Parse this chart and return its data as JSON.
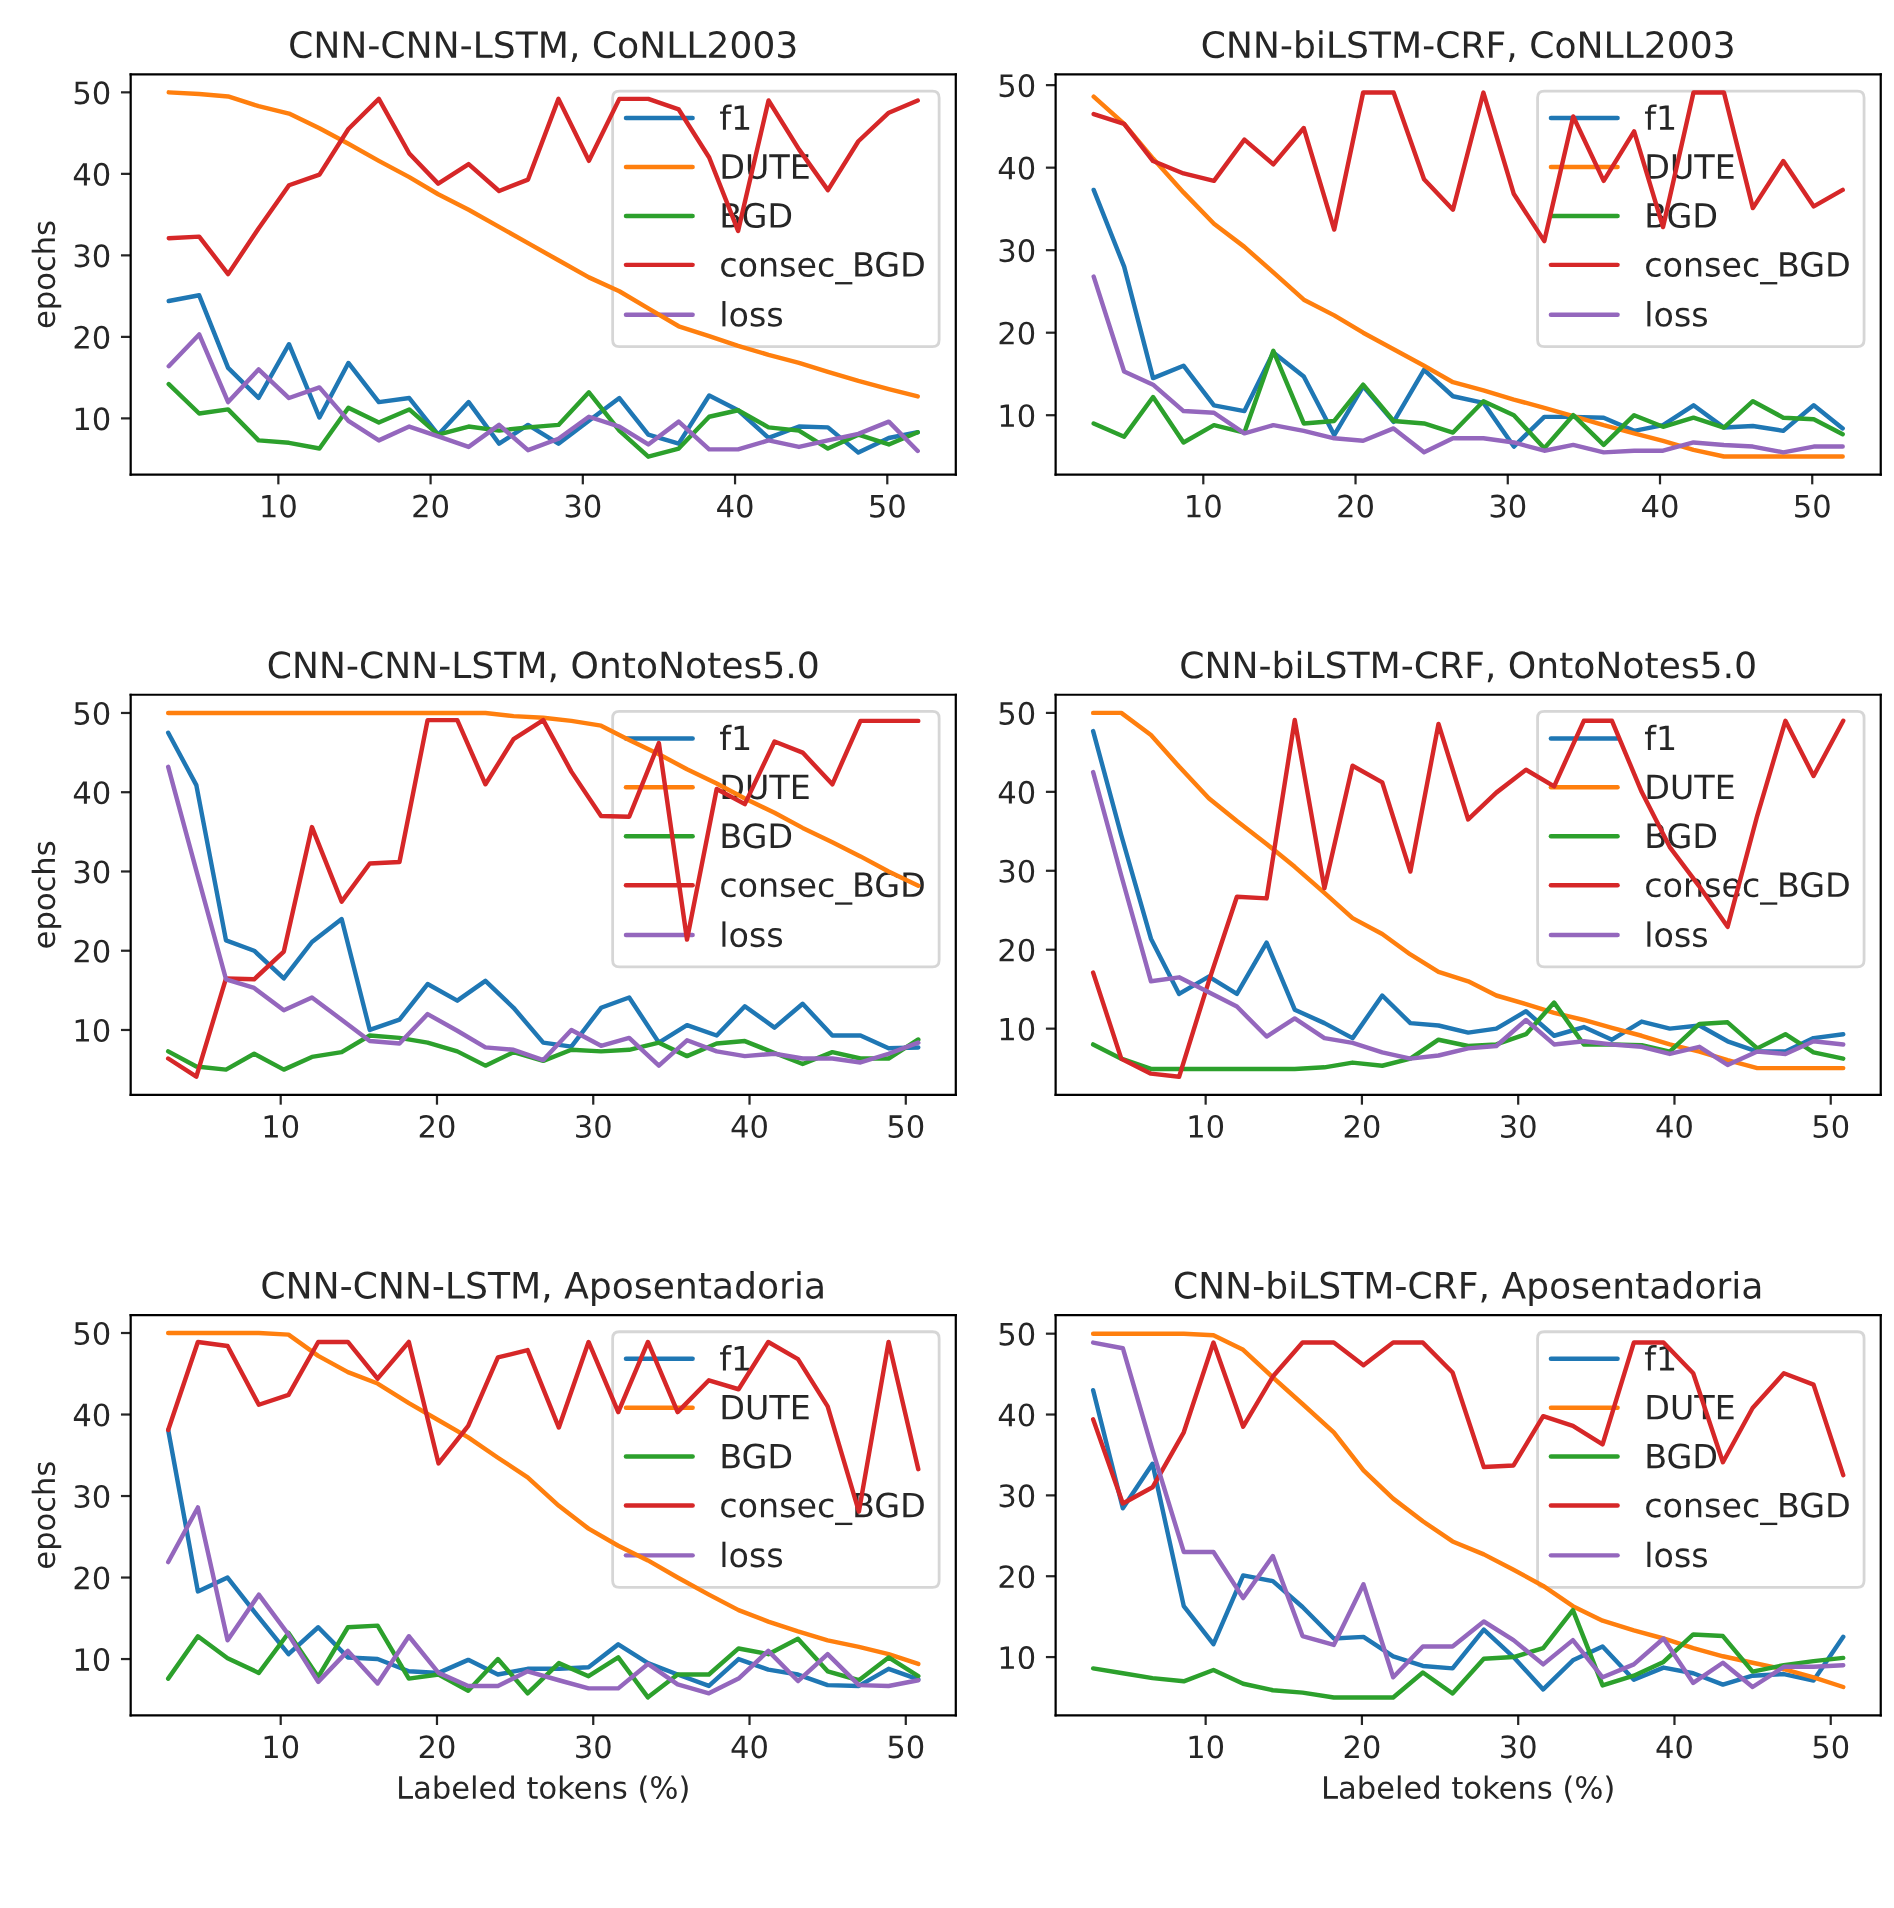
{
  "chart_data": [
    {
      "type": "line",
      "title": "CNN-CNN-LSTM, CoNLL2003",
      "ylabel": "epochs",
      "legend": "top right",
      "grid": false,
      "x": [
        2.8,
        4.8,
        6.7,
        8.7,
        10.7,
        12.7,
        14.6,
        16.6,
        18.6,
        20.5,
        22.5,
        24.5,
        26.4,
        28.4,
        30.4,
        32.4,
        34.3,
        36.3,
        38.3,
        40.2,
        42.2,
        44.2,
        46.1,
        48.1,
        50.1,
        52.0
      ],
      "xlim": [
        0.3,
        54.5
      ],
      "xticks": [
        10,
        20,
        30,
        40,
        50
      ],
      "ylim": [
        3.1,
        52.2
      ],
      "yticks": [
        10,
        20,
        30,
        40,
        50
      ],
      "series": [
        {
          "name": "f1",
          "color": "#1f77b4",
          "values": [
            24.4,
            25.1,
            16.2,
            12.5,
            19.1,
            10.1,
            16.8,
            12,
            12.5,
            8,
            12,
            6.9,
            9.2,
            6.9,
            9.7,
            12.5,
            8,
            6.9,
            12.8,
            11,
            7.6,
            9,
            8.9,
            5.8,
            7.6,
            8.3
          ]
        },
        {
          "name": "DUTE",
          "color": "#ff7f0e",
          "values": [
            50,
            49.8,
            49.5,
            48.3,
            47.4,
            45.6,
            43.7,
            41.6,
            39.6,
            37.5,
            35.6,
            33.5,
            31.5,
            29.4,
            27.3,
            25.6,
            23.5,
            21.3,
            20.1,
            18.9,
            17.8,
            16.8,
            15.7,
            14.6,
            13.6,
            12.7
          ]
        },
        {
          "name": "BGD",
          "color": "#2ca02c",
          "values": [
            14.2,
            10.6,
            11.1,
            7.3,
            7,
            6.3,
            11.3,
            9.5,
            11.1,
            8,
            9,
            8.5,
            8.9,
            9.2,
            13.2,
            8.5,
            5.3,
            6.3,
            10.2,
            11,
            8.9,
            8.5,
            6.3,
            8,
            6.8,
            8.3
          ]
        },
        {
          "name": "consec_BGD",
          "color": "#d62728",
          "values": [
            32.1,
            32.3,
            27.7,
            33.3,
            38.6,
            39.9,
            45.5,
            49.2,
            42.5,
            38.8,
            41.2,
            37.9,
            39.3,
            49.2,
            41.6,
            49.2,
            49.2,
            47.9,
            42,
            33,
            49,
            43,
            38,
            44,
            47.5,
            49
          ]
        },
        {
          "name": "loss",
          "color": "#9467bd",
          "values": [
            16.4,
            20.3,
            12,
            16,
            12.5,
            13.8,
            9.7,
            7.3,
            9,
            7.8,
            6.5,
            9.2,
            6.1,
            7.5,
            10.2,
            9,
            6.8,
            9.6,
            6.2,
            6.2,
            7.3,
            6.5,
            7.3,
            8.1,
            9.6,
            6
          ]
        }
      ]
    },
    {
      "type": "line",
      "title": "CNN-biLSTM-CRF, CoNLL2003",
      "legend": "top right",
      "grid": false,
      "x": [
        2.8,
        4.8,
        6.7,
        8.7,
        10.7,
        12.7,
        14.6,
        16.6,
        18.6,
        20.5,
        22.5,
        24.5,
        26.4,
        28.4,
        30.4,
        32.4,
        34.3,
        36.3,
        38.3,
        40.2,
        42.2,
        44.2,
        46.1,
        48.1,
        50.1,
        52.0
      ],
      "xlim": [
        0.3,
        54.5
      ],
      "xticks": [
        10,
        20,
        30,
        40,
        50
      ],
      "ylim": [
        2.8,
        51.3
      ],
      "yticks": [
        10,
        20,
        30,
        40,
        50
      ],
      "series": [
        {
          "name": "f1",
          "color": "#1f77b4",
          "values": [
            37.3,
            28,
            14.5,
            16,
            11.2,
            10.5,
            17.6,
            14.7,
            7.6,
            13.5,
            9.2,
            15.5,
            12.3,
            11.5,
            6.2,
            9.8,
            9.8,
            9.7,
            8.1,
            8.8,
            11.2,
            8.5,
            8.7,
            8.1,
            11.2,
            8.4
          ]
        },
        {
          "name": "DUTE",
          "color": "#ff7f0e",
          "values": [
            48.6,
            45.3,
            41.1,
            37,
            33.2,
            30.4,
            27.3,
            24,
            22.1,
            20,
            18,
            16,
            14,
            13,
            11.9,
            10.9,
            9.9,
            8.8,
            7.8,
            6.9,
            5.8,
            5,
            5,
            5,
            5,
            5
          ]
        },
        {
          "name": "BGD",
          "color": "#2ca02c",
          "values": [
            9,
            7.4,
            12.2,
            6.7,
            8.8,
            7.9,
            17.8,
            9,
            9.3,
            13.7,
            9.3,
            9,
            7.9,
            11.7,
            10,
            6,
            10,
            6.4,
            10,
            8.6,
            9.7,
            8.5,
            11.7,
            9.7,
            9.5,
            7.7
          ]
        },
        {
          "name": "consec_BGD",
          "color": "#d62728",
          "values": [
            46.5,
            45.3,
            40.8,
            39.3,
            38.4,
            43.4,
            40.4,
            44.8,
            32.5,
            49.1,
            49.1,
            38.6,
            34.9,
            49.1,
            36.8,
            31.1,
            46.2,
            38.4,
            44.4,
            32.8,
            49.1,
            49.1,
            35.1,
            40.8,
            35.3,
            37.3
          ]
        },
        {
          "name": "loss",
          "color": "#9467bd",
          "values": [
            26.8,
            15.3,
            13.7,
            10.5,
            10.3,
            7.8,
            8.8,
            8.1,
            7.2,
            6.9,
            8.4,
            5.5,
            7.2,
            7.2,
            6.7,
            5.7,
            6.4,
            5.5,
            5.7,
            5.7,
            6.7,
            6.4,
            6.2,
            5.5,
            6.2,
            6.2
          ]
        }
      ]
    },
    {
      "type": "line",
      "title": "CNN-CNN-LSTM, OntoNotes5.0",
      "ylabel": "epochs",
      "legend": "top right",
      "grid": false,
      "x": [
        2.8,
        4.6,
        6.5,
        8.3,
        10.2,
        12.0,
        13.9,
        15.7,
        17.6,
        19.4,
        21.3,
        23.1,
        24.9,
        26.8,
        28.6,
        30.5,
        32.3,
        34.2,
        36.0,
        37.9,
        39.7,
        41.6,
        43.4,
        45.3,
        47.1,
        48.9,
        50.8
      ],
      "xlim": [
        0.4,
        53.2
      ],
      "xticks": [
        10,
        20,
        30,
        40,
        50
      ],
      "ylim": [
        1.8,
        52.3
      ],
      "yticks": [
        10,
        20,
        30,
        40,
        50
      ],
      "series": [
        {
          "name": "f1",
          "color": "#1f77b4",
          "values": [
            47.5,
            40.9,
            21.3,
            20,
            16.5,
            21.1,
            24,
            10,
            11.3,
            15.8,
            13.7,
            16.2,
            12.8,
            8.4,
            7.9,
            12.8,
            14.1,
            8.4,
            10.6,
            9.3,
            13,
            10.3,
            13.3,
            9.3,
            9.3,
            7.7,
            7.8
          ]
        },
        {
          "name": "DUTE",
          "color": "#ff7f0e",
          "values": [
            50,
            50,
            50,
            50,
            50,
            50,
            50,
            50,
            50,
            50,
            50,
            50,
            49.6,
            49.4,
            49,
            48.4,
            46.6,
            44.8,
            42.9,
            41.1,
            39.2,
            37.4,
            35.5,
            33.7,
            31.9,
            30,
            28.2
          ]
        },
        {
          "name": "BGD",
          "color": "#2ca02c",
          "values": [
            7.3,
            5.4,
            5,
            7,
            5,
            6.6,
            7.2,
            9.3,
            9,
            8.4,
            7.3,
            5.5,
            7.2,
            6.1,
            7.5,
            7.3,
            7.5,
            8.4,
            6.7,
            8.3,
            8.6,
            7.1,
            5.7,
            7.2,
            6.4,
            6.4,
            8.8
          ]
        },
        {
          "name": "consec_BGD",
          "color": "#d62728",
          "values": [
            6.4,
            4.1,
            16.5,
            16.4,
            19.9,
            35.6,
            26.2,
            31,
            31.2,
            49.1,
            49.1,
            41,
            46.7,
            49.1,
            42.6,
            37,
            36.9,
            46.2,
            21.4,
            40.4,
            38.5,
            46.4,
            45,
            41,
            49,
            49,
            49
          ]
        },
        {
          "name": "loss",
          "color": "#9467bd",
          "values": [
            43.2,
            30.1,
            16.4,
            15.3,
            12.5,
            14.1,
            11.3,
            8.6,
            8.3,
            12,
            9.9,
            7.8,
            7.5,
            6.2,
            10,
            8,
            9,
            5.5,
            8.7,
            7.3,
            6.7,
            7,
            6.4,
            6.4,
            5.9,
            7,
            8.4
          ]
        }
      ]
    },
    {
      "type": "line",
      "title": "CNN-biLSTM-CRF, OntoNotes5.0",
      "legend": "top right",
      "grid": false,
      "x": [
        2.8,
        4.6,
        6.5,
        8.3,
        10.2,
        12.0,
        13.9,
        15.7,
        17.6,
        19.4,
        21.3,
        23.1,
        24.9,
        26.8,
        28.6,
        30.5,
        32.3,
        34.2,
        36.0,
        37.9,
        39.7,
        41.6,
        43.4,
        45.3,
        47.1,
        48.9,
        50.8
      ],
      "xlim": [
        0.4,
        53.2
      ],
      "xticks": [
        10,
        20,
        30,
        40,
        50
      ],
      "ylim": [
        1.6,
        52.3
      ],
      "yticks": [
        10,
        20,
        30,
        40,
        50
      ],
      "series": [
        {
          "name": "f1",
          "color": "#1f77b4",
          "values": [
            47.7,
            34.5,
            21.4,
            14.4,
            16.6,
            14.4,
            20.9,
            12.4,
            10.7,
            8.8,
            14.2,
            10.7,
            10.4,
            9.5,
            10,
            12.2,
            9.1,
            10.2,
            8.6,
            10.9,
            10,
            10.4,
            8.4,
            7.1,
            7.1,
            8.8,
            9.3
          ]
        },
        {
          "name": "DUTE",
          "color": "#ff7f0e",
          "values": [
            50,
            50,
            47.2,
            43.2,
            39.2,
            36.3,
            33.4,
            30.5,
            27.2,
            24,
            22,
            19.4,
            17.2,
            16,
            14.2,
            13.1,
            12,
            11.1,
            10.1,
            9.1,
            8,
            7.1,
            6,
            5,
            5,
            5,
            5
          ]
        },
        {
          "name": "BGD",
          "color": "#2ca02c",
          "values": [
            8,
            6.2,
            4.9,
            4.9,
            4.9,
            4.9,
            4.9,
            4.9,
            5.1,
            5.7,
            5.3,
            6.2,
            8.6,
            7.8,
            8,
            9.3,
            13.3,
            8,
            8,
            7.9,
            7.1,
            10.6,
            10.8,
            7.5,
            9.3,
            7,
            6.2
          ]
        },
        {
          "name": "consec_BGD",
          "color": "#d62728",
          "values": [
            17.1,
            6.2,
            4.3,
            3.9,
            16,
            26.7,
            26.5,
            49.1,
            27.8,
            43.3,
            41.2,
            29.9,
            48.6,
            36.5,
            39.9,
            42.8,
            40.7,
            49,
            49,
            40,
            33,
            28,
            22.9,
            37,
            49,
            42,
            49
          ]
        },
        {
          "name": "loss",
          "color": "#9467bd",
          "values": [
            42.5,
            29.4,
            16,
            16.5,
            14.6,
            12.8,
            9,
            11.3,
            8.8,
            8.2,
            7,
            6.2,
            6.6,
            7.5,
            7.8,
            11.1,
            8,
            8.4,
            8,
            7.7,
            6.8,
            7.7,
            5.4,
            7.1,
            6.8,
            8.4,
            8
          ]
        }
      ]
    },
    {
      "type": "line",
      "title": "CNN-CNN-LSTM, Aposentadoria",
      "xlabel": "Labeled tokens (%)",
      "ylabel": "epochs",
      "legend": "top right",
      "grid": false,
      "x": [
        2.8,
        4.7,
        6.6,
        8.6,
        10.5,
        12.4,
        14.3,
        16.2,
        18.2,
        20.1,
        22.0,
        23.9,
        25.8,
        27.8,
        29.7,
        31.6,
        33.5,
        35.4,
        37.4,
        39.3,
        41.2,
        43.1,
        45.0,
        47.0,
        48.9,
        50.8
      ],
      "xlim": [
        0.4,
        53.2
      ],
      "xticks": [
        10,
        20,
        30,
        40,
        50
      ],
      "ylim": [
        3.1,
        52.2
      ],
      "yticks": [
        10,
        20,
        30,
        40,
        50
      ],
      "series": [
        {
          "name": "f1",
          "color": "#1f77b4",
          "values": [
            38.1,
            18.3,
            20,
            15.1,
            10.6,
            13.9,
            10.2,
            10,
            8.5,
            8.3,
            9.9,
            8.1,
            8.8,
            8.8,
            9,
            11.8,
            9.5,
            8.1,
            6.7,
            10,
            8.7,
            8.1,
            6.8,
            6.7,
            8.8,
            7.5
          ]
        },
        {
          "name": "DUTE",
          "color": "#ff7f0e",
          "values": [
            50,
            50,
            50,
            50,
            49.8,
            47.2,
            45.2,
            43.8,
            41.4,
            39.3,
            37.2,
            34.7,
            32.3,
            28.8,
            26,
            23.9,
            22.1,
            20,
            17.9,
            16,
            14.6,
            13.4,
            12.3,
            11.5,
            10.6,
            9.4
          ]
        },
        {
          "name": "BGD",
          "color": "#2ca02c",
          "values": [
            7.6,
            12.8,
            10.1,
            8.3,
            13.2,
            7.8,
            13.9,
            14.1,
            7.6,
            8.1,
            6.1,
            10,
            5.8,
            9.5,
            7.9,
            10.2,
            5.3,
            8.1,
            8.1,
            11.3,
            10.6,
            12.5,
            8.5,
            7.4,
            10.2,
            7.9
          ]
        },
        {
          "name": "consec_BGD",
          "color": "#d62728",
          "values": [
            38.1,
            48.9,
            48.4,
            41.2,
            42.4,
            48.9,
            48.9,
            44.4,
            48.9,
            34,
            38.6,
            47,
            47.9,
            38.4,
            48.9,
            40.3,
            48.9,
            40.3,
            44.2,
            43.1,
            48.9,
            46.8,
            41,
            28.1,
            48.9,
            33.3
          ]
        },
        {
          "name": "loss",
          "color": "#9467bd",
          "values": [
            21.9,
            28.6,
            12.3,
            17.9,
            13,
            7.2,
            11,
            7,
            12.8,
            8.3,
            6.7,
            6.7,
            8.5,
            7.4,
            6.4,
            6.4,
            9.4,
            6.9,
            5.8,
            7.6,
            11,
            7.3,
            10.6,
            6.8,
            6.7,
            7.4
          ]
        }
      ]
    },
    {
      "type": "line",
      "title": "CNN-biLSTM-CRF, Aposentadoria",
      "xlabel": "Labeled tokens (%)",
      "legend": "top right",
      "grid": false,
      "x": [
        2.8,
        4.7,
        6.6,
        8.6,
        10.5,
        12.4,
        14.3,
        16.2,
        18.2,
        20.1,
        22.0,
        23.9,
        25.8,
        27.8,
        29.7,
        31.6,
        33.5,
        35.4,
        37.4,
        39.3,
        41.2,
        43.1,
        45.0,
        47.0,
        48.9,
        50.8
      ],
      "xlim": [
        0.4,
        53.2
      ],
      "xticks": [
        10,
        20,
        30,
        40,
        50
      ],
      "ylim": [
        2.8,
        52.3
      ],
      "yticks": [
        10,
        20,
        30,
        40,
        50
      ],
      "series": [
        {
          "name": "f1",
          "color": "#1f77b4",
          "values": [
            43,
            28.4,
            33.9,
            16.3,
            11.6,
            20.1,
            19.4,
            16.2,
            12.3,
            12.5,
            10.1,
            8.9,
            8.6,
            13.4,
            10,
            6,
            9.6,
            11.3,
            7.2,
            8.7,
            8,
            6.6,
            7.7,
            7.9,
            7.1,
            12.5
          ]
        },
        {
          "name": "DUTE",
          "color": "#ff7f0e",
          "values": [
            50,
            50,
            50,
            50,
            49.8,
            48,
            44.6,
            41.3,
            37.8,
            33.1,
            29.6,
            26.8,
            24.3,
            22.7,
            20.8,
            18.8,
            16.3,
            14.5,
            13.3,
            12.3,
            11.1,
            10.1,
            9.3,
            8.5,
            7.5,
            6.3
          ]
        },
        {
          "name": "BGD",
          "color": "#2ca02c",
          "values": [
            8.6,
            8,
            7.4,
            7,
            8.4,
            6.7,
            5.9,
            5.6,
            5,
            5,
            5,
            8.1,
            5.5,
            9.8,
            10,
            11.1,
            15.8,
            6.5,
            7.7,
            9.4,
            12.8,
            12.6,
            8.2,
            9,
            9.5,
            9.9
          ]
        },
        {
          "name": "consec_BGD",
          "color": "#d62728",
          "values": [
            39.4,
            29,
            31,
            37.8,
            48.9,
            38.5,
            44.7,
            48.9,
            48.9,
            46.1,
            48.9,
            48.9,
            45.2,
            33.5,
            33.7,
            39.8,
            38.6,
            36.3,
            48.9,
            48.9,
            45.1,
            34.1,
            40.8,
            45.1,
            43.7,
            32.5
          ]
        },
        {
          "name": "loss",
          "color": "#9467bd",
          "values": [
            48.9,
            48.2,
            35.6,
            23,
            23,
            17.3,
            22.5,
            12.6,
            11.5,
            19,
            7.5,
            11.3,
            11.3,
            14.4,
            12.1,
            9.1,
            12.1,
            7.5,
            9.1,
            12.3,
            6.8,
            9.3,
            6.3,
            8.8,
            8.8,
            9
          ]
        }
      ]
    }
  ]
}
